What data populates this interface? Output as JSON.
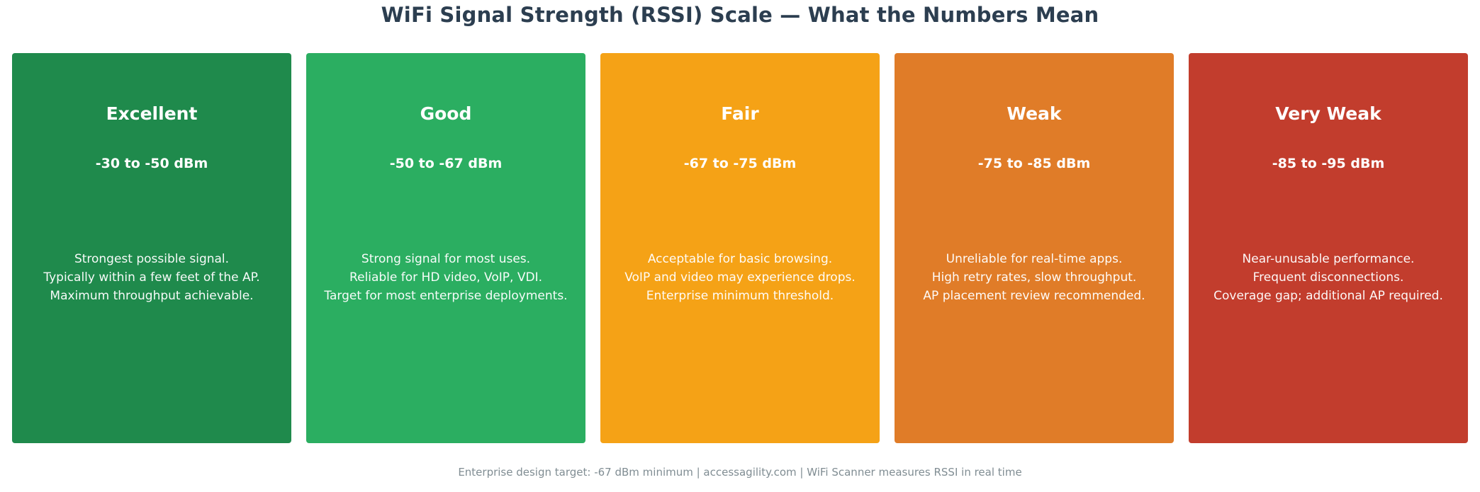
{
  "header": {
    "title": "WiFi Signal Strength (RSSI) Scale — What the Numbers Mean",
    "title_color": "#2c3e50"
  },
  "cards": [
    {
      "label": "Excellent",
      "range": "-30 to -50 dBm",
      "color": "#1f8a4c",
      "lines": [
        "Strongest possible signal.",
        "Typically within a few feet of the AP.",
        "Maximum throughput achievable."
      ]
    },
    {
      "label": "Good",
      "range": "-50 to -67 dBm",
      "color": "#2bae61",
      "lines": [
        "Strong signal for most uses.",
        "Reliable for HD video, VoIP, VDI.",
        "Target for most enterprise deployments."
      ]
    },
    {
      "label": "Fair",
      "range": "-67 to -75 dBm",
      "color": "#f5a216",
      "lines": [
        "Acceptable for basic browsing.",
        "VoIP and video may experience drops.",
        "Enterprise minimum threshold."
      ]
    },
    {
      "label": "Weak",
      "range": "-75 to -85 dBm",
      "color": "#e07c28",
      "lines": [
        "Unreliable for real-time apps.",
        "High retry rates, slow throughput.",
        "AP placement review recommended."
      ]
    },
    {
      "label": "Very Weak",
      "range": "-85 to -95 dBm",
      "color": "#c23d2d",
      "lines": [
        "Near-unusable performance.",
        "Frequent disconnections.",
        "Coverage gap; additional AP required."
      ]
    }
  ],
  "footer": {
    "text": "Enterprise design target: -67 dBm minimum  |  accessagility.com  |  WiFi Scanner measures RSSI in real time",
    "color": "#808d93"
  }
}
